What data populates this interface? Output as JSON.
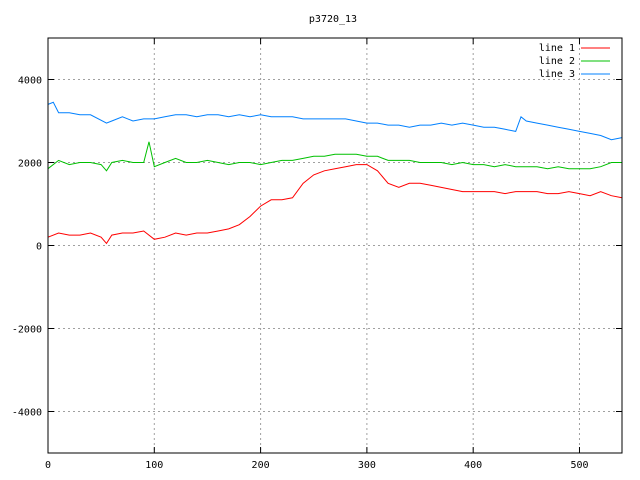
{
  "chart_data": {
    "type": "line",
    "title": "p3720_13",
    "xlabel": "",
    "ylabel": "",
    "xlim": [
      0,
      540
    ],
    "ylim": [
      -5000,
      5000
    ],
    "xticks": [
      0,
      100,
      200,
      300,
      400,
      500
    ],
    "yticks": [
      -4000,
      -2000,
      0,
      2000,
      4000
    ],
    "grid": true,
    "legend_position": "top-right",
    "series": [
      {
        "name": "line 1",
        "color": "#ff0000",
        "x": [
          0,
          10,
          20,
          30,
          40,
          50,
          55,
          60,
          70,
          80,
          90,
          100,
          110,
          120,
          130,
          140,
          150,
          160,
          170,
          180,
          190,
          200,
          210,
          220,
          230,
          240,
          250,
          260,
          270,
          280,
          290,
          300,
          310,
          320,
          330,
          340,
          350,
          360,
          370,
          380,
          390,
          400,
          410,
          420,
          430,
          440,
          450,
          460,
          470,
          480,
          490,
          500,
          510,
          520,
          530,
          540
        ],
        "y": [
          200,
          300,
          250,
          250,
          300,
          200,
          50,
          250,
          300,
          300,
          350,
          150,
          200,
          300,
          250,
          300,
          300,
          350,
          400,
          500,
          700,
          950,
          1100,
          1100,
          1150,
          1500,
          1700,
          1800,
          1850,
          1900,
          1950,
          1950,
          1800,
          1500,
          1400,
          1500,
          1500,
          1450,
          1400,
          1350,
          1300,
          1300,
          1300,
          1300,
          1250,
          1300,
          1300,
          1300,
          1250,
          1250,
          1300,
          1250,
          1200,
          1300,
          1200,
          1150
        ]
      },
      {
        "name": "line 2",
        "color": "#00c000",
        "x": [
          0,
          10,
          20,
          30,
          40,
          50,
          55,
          60,
          70,
          80,
          90,
          95,
          100,
          110,
          120,
          130,
          140,
          150,
          160,
          170,
          180,
          190,
          200,
          210,
          220,
          230,
          240,
          250,
          260,
          270,
          280,
          290,
          300,
          310,
          320,
          330,
          340,
          350,
          360,
          370,
          380,
          390,
          400,
          410,
          420,
          430,
          440,
          450,
          460,
          470,
          480,
          490,
          500,
          510,
          520,
          530,
          540
        ],
        "y": [
          1850,
          2050,
          1950,
          2000,
          2000,
          1950,
          1800,
          2000,
          2050,
          2000,
          2000,
          2500,
          1900,
          2000,
          2100,
          2000,
          2000,
          2050,
          2000,
          1950,
          2000,
          2000,
          1950,
          2000,
          2050,
          2050,
          2100,
          2150,
          2150,
          2200,
          2200,
          2200,
          2150,
          2150,
          2050,
          2050,
          2050,
          2000,
          2000,
          2000,
          1950,
          2000,
          1950,
          1950,
          1900,
          1950,
          1900,
          1900,
          1900,
          1850,
          1900,
          1850,
          1850,
          1850,
          1900,
          2000,
          2000
        ]
      },
      {
        "name": "line 3",
        "color": "#0080ff",
        "x": [
          0,
          5,
          10,
          20,
          30,
          40,
          55,
          60,
          70,
          80,
          90,
          100,
          110,
          120,
          130,
          140,
          150,
          160,
          170,
          180,
          190,
          200,
          210,
          220,
          230,
          240,
          250,
          260,
          270,
          280,
          290,
          300,
          310,
          320,
          330,
          340,
          350,
          360,
          370,
          380,
          390,
          400,
          410,
          420,
          430,
          440,
          445,
          450,
          460,
          470,
          480,
          490,
          500,
          510,
          520,
          530,
          540
        ],
        "y": [
          3400,
          3450,
          3200,
          3200,
          3150,
          3150,
          2950,
          3000,
          3100,
          3000,
          3050,
          3050,
          3100,
          3150,
          3150,
          3100,
          3150,
          3150,
          3100,
          3150,
          3100,
          3150,
          3100,
          3100,
          3100,
          3050,
          3050,
          3050,
          3050,
          3050,
          3000,
          2950,
          2950,
          2900,
          2900,
          2850,
          2900,
          2900,
          2950,
          2900,
          2950,
          2900,
          2850,
          2850,
          2800,
          2750,
          3100,
          3000,
          2950,
          2900,
          2850,
          2800,
          2750,
          2700,
          2650,
          2550,
          2600
        ]
      }
    ]
  }
}
